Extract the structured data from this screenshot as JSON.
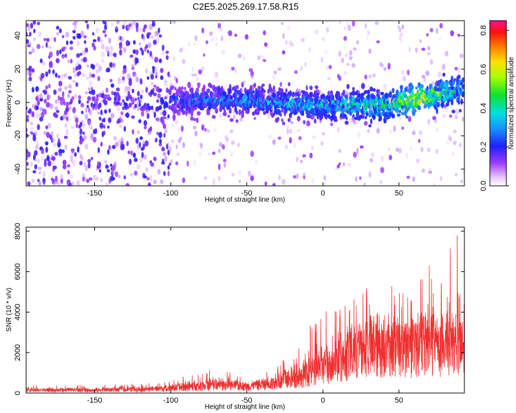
{
  "title": "C2E5.2025.269.17.58.R15",
  "chart_data": [
    {
      "type": "heatmap",
      "xlabel": "Height of straight line (km)",
      "ylabel": "Frequency (Hz)",
      "xlim": [
        -195,
        93
      ],
      "ylim": [
        -50,
        49
      ],
      "xticks": [
        -150,
        -100,
        -50,
        0,
        50
      ],
      "yticks": [
        -40,
        -20,
        0,
        20,
        40
      ],
      "colorbar": {
        "label": "Normalized spectral amplitude",
        "range": [
          0,
          0.85
        ],
        "ticks": [
          0.0,
          0.2,
          0.4,
          0.6,
          0.8
        ],
        "colormap": "white-purple-blue-cyan-green-yellow-orange-red-magenta"
      },
      "description_points": [
        {
          "x": -195,
          "y_center": 0,
          "amplitude": 0.05
        },
        {
          "x": -100,
          "y_center": 0,
          "amplitude": 0.18
        },
        {
          "x": -60,
          "y_center": 2,
          "amplitude": 0.25
        },
        {
          "x": 0,
          "y_center": -2,
          "amplitude": 0.3
        },
        {
          "x": 40,
          "y_center": -2,
          "amplitude": 0.4
        },
        {
          "x": 60,
          "y_center": 2,
          "amplitude": 0.6
        },
        {
          "x": 90,
          "y_center": 8,
          "amplitude": 0.35
        }
      ]
    },
    {
      "type": "line",
      "xlabel": "Height of straight line (km)",
      "ylabel": "SNR (10 * v/v)",
      "xlim": [
        -195,
        93
      ],
      "ylim": [
        0,
        8200
      ],
      "xticks": [
        -150,
        -100,
        -50,
        0,
        50
      ],
      "yticks": [
        0,
        2000,
        4000,
        6000,
        8000
      ],
      "series": [
        {
          "color": "#f03030",
          "envelope": {
            "x": [
              -195,
              -150,
              -110,
              -100,
              -90,
              -80,
              -70,
              -60,
              -50,
              -40,
              -30,
              -20,
              -10,
              0,
              10,
              20,
              30,
              40,
              50,
              60,
              70,
              75,
              80,
              85,
              93
            ],
            "base": [
              150,
              150,
              200,
              250,
              300,
              350,
              400,
              400,
              350,
              450,
              550,
              700,
              1000,
              1300,
              1700,
              2000,
              2200,
              2400,
              2500,
              2500,
              2600,
              2400,
              2000,
              2200,
              2500
            ],
            "peak": [
              400,
              400,
              500,
              600,
              900,
              1000,
              1300,
              1000,
              700,
              1000,
              1500,
              2000,
              3200,
              4000,
              4500,
              5000,
              5500,
              5800,
              5000,
              5000,
              6800,
              6200,
              8100,
              8000,
              7500
            ]
          }
        }
      ]
    }
  ]
}
